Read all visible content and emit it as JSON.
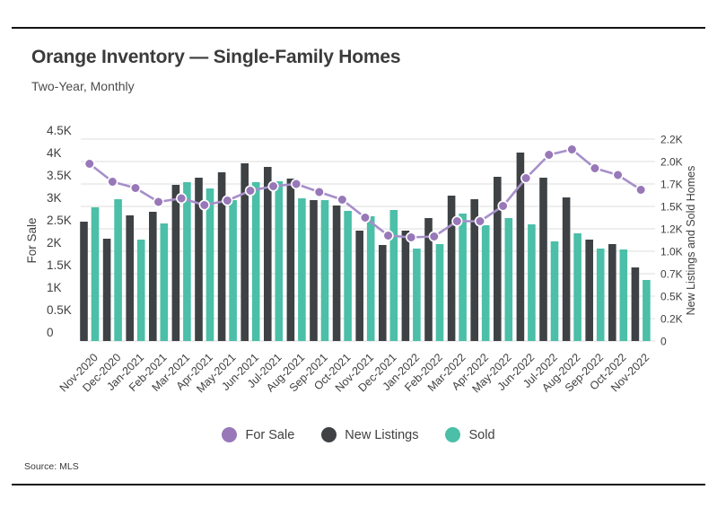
{
  "page": {
    "title": "Orange Inventory — Single-Family Homes",
    "subtitle": "Two-Year, Monthly",
    "source": "Source: MLS"
  },
  "chart_data": {
    "type": "combo-bar-line",
    "title": "Orange Inventory — Single-Family Homes",
    "subtitle": "Two-Year, Monthly",
    "units": "thousands of homes (K)",
    "grid": true,
    "legend_position": "bottom",
    "categories": [
      "Nov-2020",
      "Dec-2020",
      "Jan-2021",
      "Feb-2021",
      "Mar-2021",
      "Apr-2021",
      "May-2021",
      "Jun-2021",
      "Jul-2021",
      "Aug-2021",
      "Sep-2021",
      "Oct-2021",
      "Nov-2021",
      "Dec-2021",
      "Jan-2022",
      "Feb-2022",
      "Mar-2022",
      "Apr-2022",
      "May-2022",
      "Jun-2022",
      "Jul-2022",
      "Aug-2022",
      "Sep-2022",
      "Oct-2022",
      "Nov-2022"
    ],
    "series": [
      {
        "name": "For Sale",
        "type": "line",
        "axis": "left",
        "marker_color": "#9878b8",
        "line_color": "#a78fc9",
        "values": [
          3.95,
          3.55,
          3.41,
          3.1,
          3.18,
          3.03,
          3.13,
          3.35,
          3.45,
          3.5,
          3.32,
          3.15,
          2.75,
          2.35,
          2.31,
          2.33,
          2.67,
          2.67,
          3.01,
          3.63,
          4.15,
          4.27,
          3.85,
          3.7,
          3.37
        ]
      },
      {
        "name": "New Listings",
        "type": "bar",
        "axis": "right",
        "color": "#3e4245",
        "values": [
          1.33,
          1.14,
          1.4,
          1.44,
          1.74,
          1.82,
          1.88,
          1.98,
          1.94,
          1.81,
          1.57,
          1.51,
          1.23,
          1.07,
          1.23,
          1.37,
          1.62,
          1.58,
          1.83,
          2.1,
          1.82,
          1.6,
          1.13,
          1.08,
          0.82
        ]
      },
      {
        "name": "Sold",
        "type": "bar",
        "axis": "right",
        "color": "#4bbfa8",
        "values": [
          1.49,
          1.58,
          1.13,
          1.31,
          1.77,
          1.7,
          1.57,
          1.77,
          1.78,
          1.59,
          1.57,
          1.45,
          1.39,
          1.46,
          1.03,
          1.08,
          1.42,
          1.29,
          1.37,
          1.3,
          1.11,
          1.2,
          1.03,
          1.02,
          0.68
        ]
      }
    ],
    "left_axis": {
      "title": "For Sale",
      "min": 0,
      "max": 4.5,
      "ticks": [
        "0",
        "0.5K",
        "1K",
        "1.5K",
        "2K",
        "2.5K",
        "3K",
        "3.5K",
        "4K",
        "4.5K"
      ]
    },
    "right_axis": {
      "title": "New Listings and Sold Homes",
      "min": 0,
      "max": 2.25,
      "ticks": [
        "0",
        "0.2K",
        "0.5K",
        "0.7K",
        "1.0K",
        "1.2K",
        "1.5K",
        "1.7K",
        "2.0K",
        "2.2K"
      ]
    },
    "legend": [
      {
        "label": "For Sale",
        "color": "#9878b8"
      },
      {
        "label": "New Listings",
        "color": "#3e4245"
      },
      {
        "label": "Sold",
        "color": "#4bbfa8"
      }
    ],
    "colors": {
      "grid": "#dedede",
      "axis_text": "#3f3f3f"
    }
  }
}
